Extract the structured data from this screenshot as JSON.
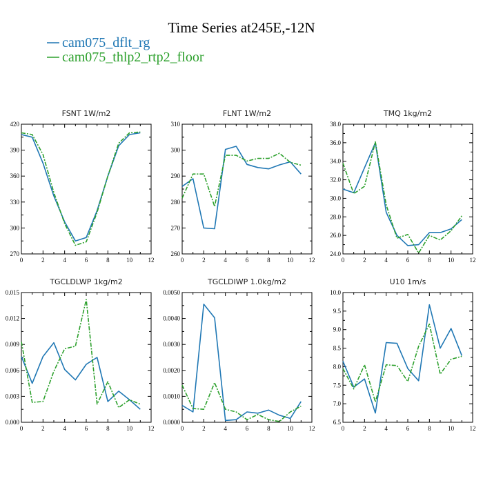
{
  "title": "Time Series at245E,-12N",
  "legend": [
    {
      "name": "cam075_dflt_rg",
      "color": "#1f77b4",
      "dash": false
    },
    {
      "name": "cam075_thlp2_rtp2_floor",
      "color": "#2ca02c",
      "dash": true
    }
  ],
  "chart_data": [
    {
      "type": "line",
      "title": "FSNT   1W/m2",
      "x": [
        0,
        1,
        2,
        3,
        4,
        5,
        6,
        7,
        8,
        9,
        10,
        11
      ],
      "xlim": [
        0,
        12
      ],
      "xticks": [
        "0",
        "2",
        "4",
        "6",
        "8",
        "10",
        "12"
      ],
      "ylim": [
        270,
        420
      ],
      "yticks": [
        "270",
        "300",
        "330",
        "360",
        "390",
        "420"
      ],
      "series": [
        {
          "name": "cam075_dflt_rg",
          "values": [
            408,
            405,
            375,
            337,
            307,
            285,
            289,
            320,
            360,
            395,
            408,
            410
          ]
        },
        {
          "name": "cam075_thlp2_rtp2_floor",
          "values": [
            410,
            408,
            385,
            341,
            305,
            280,
            284,
            318,
            360,
            398,
            410,
            411
          ]
        }
      ]
    },
    {
      "type": "line",
      "title": "FLNT   1W/m2",
      "x": [
        0,
        1,
        2,
        3,
        4,
        5,
        6,
        7,
        8,
        9,
        10,
        11
      ],
      "xlim": [
        0,
        12
      ],
      "xticks": [
        "0",
        "2",
        "4",
        "6",
        "8",
        "10",
        "12"
      ],
      "ylim": [
        260,
        310
      ],
      "yticks": [
        "260",
        "270",
        "280",
        "290",
        "300",
        "310"
      ],
      "series": [
        {
          "name": "cam075_dflt_rg",
          "values": [
            286,
            289,
            270,
            269.7,
            300.3,
            301.5,
            294.5,
            293.3,
            292.8,
            294.3,
            295.5,
            290.8
          ]
        },
        {
          "name": "cam075_thlp2_rtp2_floor",
          "values": [
            281.5,
            290.8,
            290.8,
            278.3,
            298,
            298,
            295.8,
            296.8,
            296.8,
            298.8,
            295.3,
            294.2
          ]
        }
      ]
    },
    {
      "type": "line",
      "title": "TMQ   1kg/m2",
      "x": [
        0,
        1,
        2,
        3,
        4,
        5,
        6,
        7,
        8,
        9,
        10,
        11
      ],
      "xlim": [
        0,
        12
      ],
      "xticks": [
        "0",
        "2",
        "4",
        "6",
        "8",
        "10",
        "12"
      ],
      "ylim": [
        24.0,
        38.0
      ],
      "yticks": [
        "24.0",
        "26.0",
        "28.0",
        "30.0",
        "32.0",
        "34.0",
        "36.0",
        "38.0"
      ],
      "series": [
        {
          "name": "cam075_dflt_rg",
          "values": [
            31.0,
            30.6,
            33.3,
            36.0,
            28.5,
            26.0,
            24.9,
            25.0,
            26.3,
            26.3,
            26.7,
            27.7
          ]
        },
        {
          "name": "cam075_thlp2_rtp2_floor",
          "values": [
            33.8,
            30.5,
            31.3,
            36.1,
            29.3,
            25.7,
            26.1,
            24.1,
            26.0,
            25.5,
            26.5,
            28.1
          ]
        }
      ]
    },
    {
      "type": "line",
      "title": "TGCLDLWP   1kg/m2",
      "x": [
        0,
        1,
        2,
        3,
        4,
        5,
        6,
        7,
        8,
        9,
        10,
        11
      ],
      "xlim": [
        0,
        12
      ],
      "xticks": [
        "0",
        "2",
        "4",
        "6",
        "8",
        "10",
        "12"
      ],
      "ylim": [
        0.0,
        0.015
      ],
      "yticks": [
        "0.000",
        "0.003",
        "0.006",
        "0.009",
        "0.012",
        "0.015"
      ],
      "series": [
        {
          "name": "cam075_dflt_rg",
          "values": [
            0.0076,
            0.0045,
            0.0076,
            0.0092,
            0.0061,
            0.0049,
            0.0067,
            0.0075,
            0.0024,
            0.0036,
            0.0026,
            0.0015
          ]
        },
        {
          "name": "cam075_thlp2_rtp2_floor",
          "values": [
            0.0093,
            0.0023,
            0.0024,
            0.0059,
            0.0085,
            0.0088,
            0.0142,
            0.0021,
            0.0047,
            0.0017,
            0.0026,
            0.0021
          ]
        }
      ]
    },
    {
      "type": "line",
      "title": "TGCLDIWP   1.0kg/m2",
      "x": [
        0,
        1,
        2,
        3,
        4,
        5,
        6,
        7,
        8,
        9,
        10,
        11
      ],
      "xlim": [
        0,
        12
      ],
      "xticks": [
        "0",
        "2",
        "4",
        "6",
        "8",
        "10",
        "12"
      ],
      "ylim": [
        0.0,
        0.005
      ],
      "yticks": [
        "0.0000",
        "0.0010",
        "0.0020",
        "0.0030",
        "0.0040",
        "0.0050"
      ],
      "series": [
        {
          "name": "cam075_dflt_rg",
          "values": [
            0.00065,
            0.0004,
            0.00455,
            0.00403,
            7e-05,
            0.0001,
            0.0004,
            0.00035,
            0.00047,
            0.00027,
            0.00015,
            0.0008
          ]
        },
        {
          "name": "cam075_thlp2_rtp2_floor",
          "values": [
            0.00143,
            0.00053,
            0.0005,
            0.00153,
            0.0005,
            0.0004,
            0.0001,
            0.0003,
            0.0001,
            3e-05,
            0.0004,
            0.00062
          ]
        }
      ]
    },
    {
      "type": "line",
      "title": "U10   1m/s",
      "x": [
        0,
        1,
        2,
        3,
        4,
        5,
        6,
        7,
        8,
        9,
        10,
        11
      ],
      "xlim": [
        0,
        12
      ],
      "xticks": [
        "0",
        "2",
        "4",
        "6",
        "8",
        "10",
        "12"
      ],
      "ylim": [
        6.5,
        10.0
      ],
      "yticks": [
        "6.5",
        "7.0",
        "7.5",
        "8.0",
        "8.5",
        "9.0",
        "9.5",
        "10.0"
      ],
      "series": [
        {
          "name": "cam075_dflt_rg",
          "values": [
            8.15,
            7.45,
            7.67,
            6.75,
            8.65,
            8.63,
            7.95,
            7.62,
            9.67,
            8.5,
            9.03,
            8.3
          ]
        },
        {
          "name": "cam075_thlp2_rtp2_floor",
          "values": [
            7.95,
            7.4,
            8.05,
            7.05,
            8.05,
            8.03,
            7.6,
            8.55,
            9.15,
            7.8,
            8.2,
            8.28
          ]
        }
      ]
    }
  ]
}
